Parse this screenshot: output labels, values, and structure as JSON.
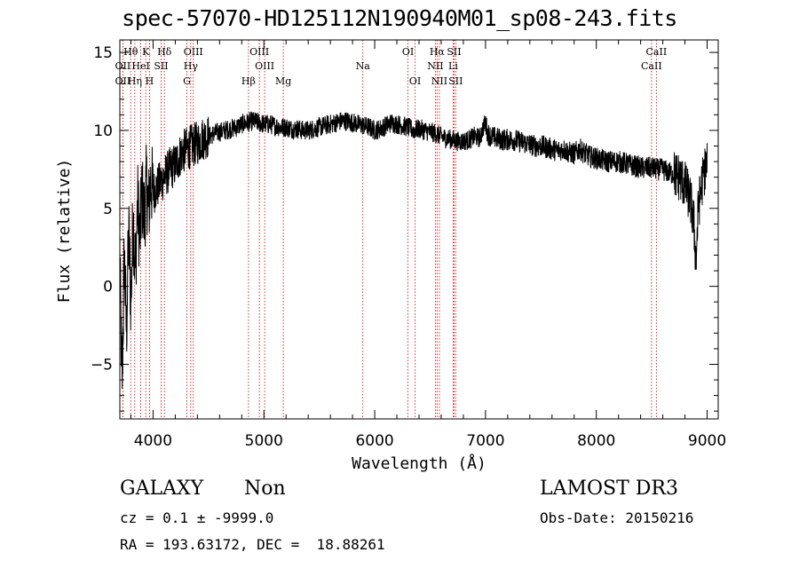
{
  "chart_data": {
    "type": "line",
    "title": "spec-57070-HD125112N190940M01_sp08-243.fits",
    "xlabel": "Wavelength (Å)",
    "ylabel": "Flux (relative)",
    "xlim": [
      3700,
      9100
    ],
    "ylim": [
      -8.5,
      15.8
    ],
    "x_ticks": [
      4000,
      5000,
      6000,
      7000,
      8000,
      9000
    ],
    "y_ticks": [
      -5,
      0,
      5,
      10,
      15
    ],
    "series": [
      {
        "name": "flux",
        "x": [
          3700,
          3720,
          3740,
          3760,
          3780,
          3800,
          3820,
          3840,
          3860,
          3880,
          3900,
          3920,
          3940,
          3960,
          3980,
          4000,
          4050,
          4100,
          4150,
          4200,
          4250,
          4300,
          4350,
          4400,
          4450,
          4500,
          4550,
          4600,
          4650,
          4700,
          4750,
          4800,
          4850,
          4900,
          4950,
          5000,
          5050,
          5100,
          5150,
          5200,
          5250,
          5300,
          5350,
          5400,
          5450,
          5500,
          5550,
          5600,
          5650,
          5700,
          5750,
          5800,
          5850,
          5900,
          5950,
          6000,
          6050,
          6100,
          6150,
          6200,
          6250,
          6300,
          6350,
          6400,
          6450,
          6500,
          6550,
          6600,
          6650,
          6700,
          6750,
          6800,
          6850,
          6900,
          6950,
          6980,
          7000,
          7020,
          7050,
          7100,
          7150,
          7200,
          7250,
          7300,
          7350,
          7400,
          7450,
          7500,
          7550,
          7600,
          7650,
          7700,
          7750,
          7800,
          7850,
          7900,
          7950,
          8000,
          8050,
          8100,
          8150,
          8200,
          8250,
          8300,
          8350,
          8400,
          8450,
          8500,
          8550,
          8600,
          8650,
          8700,
          8750,
          8800,
          8850,
          8880,
          8900,
          8920,
          8950,
          8980,
          9000
        ],
        "y": [
          1.5,
          -6.5,
          2.0,
          -3.0,
          3.5,
          -1.0,
          4.5,
          1.0,
          5.5,
          3.0,
          6.0,
          4.5,
          6.5,
          5.0,
          6.8,
          6.0,
          6.5,
          7.0,
          7.5,
          7.8,
          8.5,
          8.8,
          9.0,
          9.2,
          9.5,
          9.6,
          9.8,
          9.9,
          10.0,
          10.1,
          10.2,
          10.4,
          10.5,
          10.6,
          10.5,
          10.4,
          10.4,
          10.3,
          10.2,
          10.2,
          10.1,
          10.1,
          10.0,
          10.0,
          10.1,
          10.2,
          10.3,
          10.4,
          10.5,
          10.6,
          10.6,
          10.5,
          10.4,
          10.3,
          10.2,
          10.0,
          10.1,
          10.3,
          10.5,
          10.4,
          10.3,
          10.2,
          10.0,
          10.1,
          10.0,
          9.9,
          9.8,
          9.6,
          9.5,
          9.4,
          9.3,
          9.3,
          9.4,
          9.6,
          9.5,
          10.2,
          10.5,
          9.8,
          9.6,
          9.5,
          9.4,
          9.4,
          9.4,
          9.3,
          9.2,
          9.1,
          9.0,
          9.0,
          8.9,
          8.8,
          8.7,
          8.8,
          8.6,
          8.5,
          8.8,
          8.5,
          8.3,
          8.2,
          8.1,
          8.0,
          8.0,
          8.0,
          7.9,
          7.8,
          7.7,
          7.6,
          7.6,
          7.6,
          7.5,
          7.5,
          7.3,
          7.2,
          7.0,
          6.5,
          5.5,
          4.0,
          1.5,
          5.0,
          6.5,
          7.5,
          7.8
        ]
      }
    ],
    "line_markers": [
      {
        "label": "OII",
        "x": 3727,
        "row": 2
      },
      {
        "label": "OII",
        "x": 3727,
        "row": 3
      },
      {
        "label": "Hθ",
        "x": 3798,
        "row": 1
      },
      {
        "label": "Hη",
        "x": 3835,
        "row": 3
      },
      {
        "label": "HeI",
        "x": 3889,
        "row": 2
      },
      {
        "label": "K",
        "x": 3934,
        "row": 1
      },
      {
        "label": "H",
        "x": 3968,
        "row": 3
      },
      {
        "label": "Hδ",
        "x": 4102,
        "row": 1
      },
      {
        "label": "SII",
        "x": 4072,
        "row": 2
      },
      {
        "label": "OIII",
        "x": 4363,
        "row": 1
      },
      {
        "label": "Hγ",
        "x": 4340,
        "row": 2
      },
      {
        "label": "G",
        "x": 4305,
        "row": 3
      },
      {
        "label": "OIII",
        "x": 4959,
        "row": 1
      },
      {
        "label": "OIII",
        "x": 5007,
        "row": 2
      },
      {
        "label": "Hβ",
        "x": 4861,
        "row": 3
      },
      {
        "label": "Mg",
        "x": 5175,
        "row": 3
      },
      {
        "label": "Na",
        "x": 5893,
        "row": 2
      },
      {
        "label": "OI",
        "x": 6300,
        "row": 1
      },
      {
        "label": "OI",
        "x": 6364,
        "row": 3
      },
      {
        "label": "Hα",
        "x": 6563,
        "row": 1
      },
      {
        "label": "SII",
        "x": 6716,
        "row": 1
      },
      {
        "label": "NII",
        "x": 6548,
        "row": 2
      },
      {
        "label": "Li",
        "x": 6708,
        "row": 2
      },
      {
        "label": "NII",
        "x": 6584,
        "row": 3
      },
      {
        "label": "SII",
        "x": 6731,
        "row": 3
      },
      {
        "label": "CaII",
        "x": 8542,
        "row": 1
      },
      {
        "label": "CaII",
        "x": 8498,
        "row": 2
      }
    ]
  },
  "info": {
    "class": "GALAXY",
    "subclass": "Non",
    "cz": "cz = 0.1 ± -9999.0",
    "coords": "RA = 193.63172, DEC =  18.88261",
    "survey": "LAMOST DR3",
    "obs_date": "Obs-Date: 20150216"
  }
}
